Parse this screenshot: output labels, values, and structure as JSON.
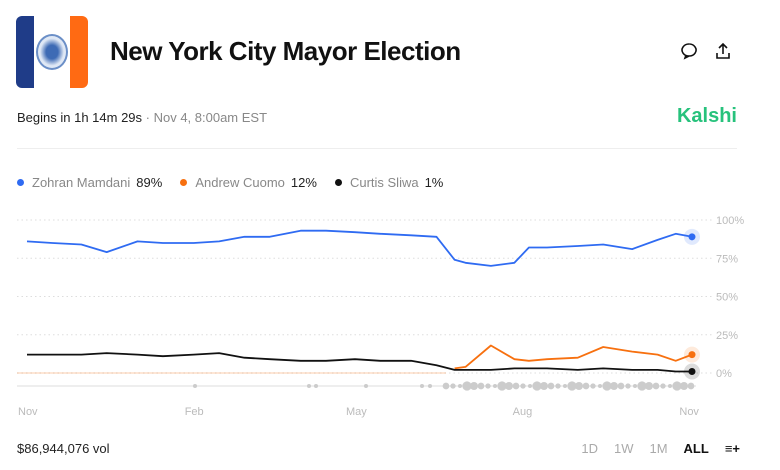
{
  "header": {
    "title": "New York City Mayor Election",
    "begins": "Begins in 1h 14m 29s",
    "date": " · Nov 4, 8:00am EST",
    "brand": "Kalshi",
    "icons": [
      "comment-icon",
      "share-icon"
    ]
  },
  "legend": [
    {
      "name": "Zohran Mamdani",
      "value": "89%",
      "color": "#2f6bf2"
    },
    {
      "name": "Andrew Cuomo",
      "value": "12%",
      "color": "#f7700f"
    },
    {
      "name": "Curtis Sliwa",
      "value": "1%",
      "color": "#111111"
    }
  ],
  "footer": {
    "volume": "$86,944,076 vol",
    "ranges": [
      "1D",
      "1W",
      "1M",
      "ALL"
    ],
    "active_range": "ALL"
  },
  "chart_data": {
    "type": "line",
    "x": [
      "2024-11-01",
      "2024-11-15",
      "2024-12-01",
      "2024-12-15",
      "2025-01-01",
      "2025-01-15",
      "2025-02-01",
      "2025-02-15",
      "2025-03-01",
      "2025-03-15",
      "2025-04-01",
      "2025-04-15",
      "2025-05-01",
      "2025-05-15",
      "2025-06-01",
      "2025-06-15",
      "2025-06-25",
      "2025-07-01",
      "2025-07-15",
      "2025-07-28",
      "2025-08-05",
      "2025-08-15",
      "2025-09-01",
      "2025-09-15",
      "2025-10-01",
      "2025-10-15",
      "2025-10-25",
      "2025-11-03"
    ],
    "series": [
      {
        "name": "Zohran Mamdani",
        "color": "#2f6bf2",
        "values": [
          86,
          85,
          84,
          79,
          86,
          85,
          85,
          86,
          89,
          89,
          93,
          93,
          92,
          91,
          90,
          89,
          74,
          72,
          70,
          72,
          82,
          82,
          83,
          84,
          81,
          87,
          91,
          89
        ]
      },
      {
        "name": "Andrew Cuomo",
        "color": "#f7700f",
        "values": [
          null,
          null,
          null,
          null,
          null,
          null,
          null,
          null,
          null,
          null,
          null,
          null,
          null,
          null,
          null,
          null,
          3,
          4,
          18,
          9,
          8,
          9,
          10,
          17,
          14,
          12,
          8,
          12
        ]
      },
      {
        "name": "Curtis Sliwa",
        "color": "#111111",
        "values": [
          12,
          12,
          12,
          13,
          12,
          11,
          12,
          13,
          10,
          9,
          8,
          8,
          9,
          8,
          8,
          5,
          2,
          2,
          2,
          3,
          3,
          3,
          2,
          3,
          2,
          2,
          1,
          1
        ]
      }
    ],
    "xticks": [
      "Nov",
      "Feb",
      "May",
      "Aug",
      "Nov"
    ],
    "yticks": [
      "100%",
      "75%",
      "50%",
      "25%",
      "0%"
    ],
    "ylim": [
      0,
      100
    ],
    "grid": true
  }
}
